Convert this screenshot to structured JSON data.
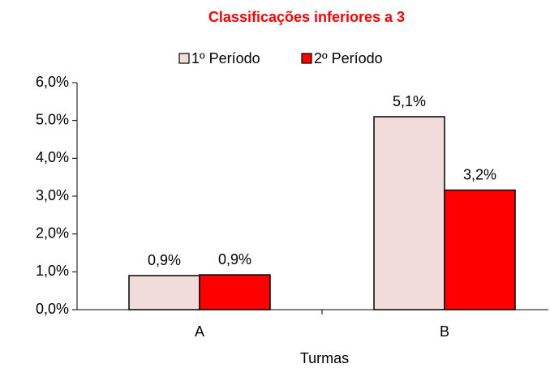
{
  "chart_data": {
    "type": "bar",
    "title": "Classificações inferiores a 3",
    "x_label": "Turmas",
    "categories": [
      "A",
      "B"
    ],
    "series": [
      {
        "name": "1º Período",
        "color": "#f2dcdb",
        "values": [
          0.9,
          5.1
        ],
        "value_labels": [
          "0,9%",
          "5,1%"
        ]
      },
      {
        "name": "2º Período",
        "color": "#ff0000",
        "values": [
          0.92,
          3.16
        ],
        "value_labels": [
          "0,9%",
          "3,2%"
        ]
      }
    ],
    "ylim": [
      0,
      6
    ],
    "yticks": [
      {
        "value": 0,
        "label": "0,0%"
      },
      {
        "value": 1,
        "label": "1,0%"
      },
      {
        "value": 2,
        "label": "2,0%"
      },
      {
        "value": 3,
        "label": "3,0%"
      },
      {
        "value": 4,
        "label": "4,0%"
      },
      {
        "value": 5,
        "label": "5.0%"
      },
      {
        "value": 6,
        "label": "6,0%"
      }
    ],
    "legend": "top"
  }
}
